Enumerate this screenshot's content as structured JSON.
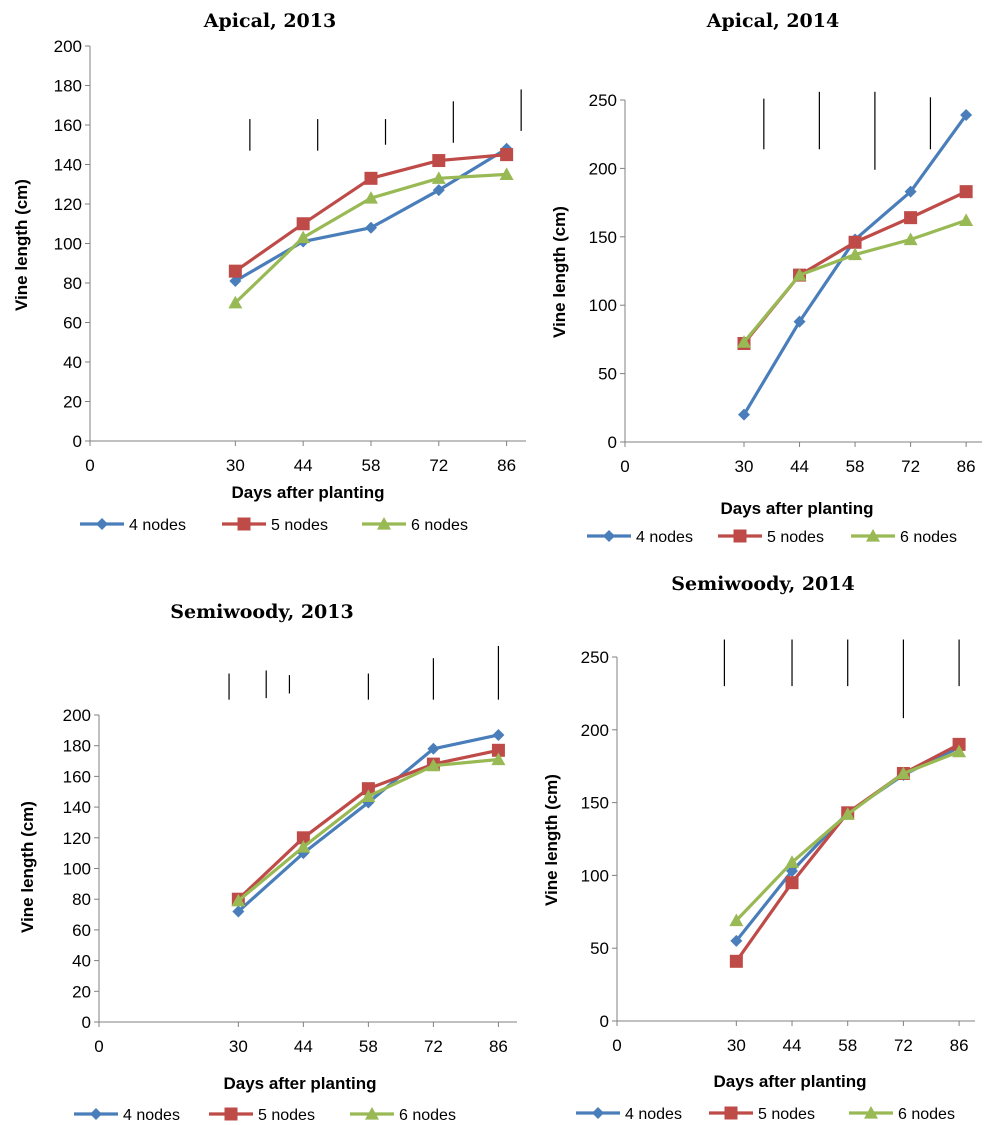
{
  "colors": {
    "4 nodes": "#4a7ebb",
    "5 nodes": "#be4b48",
    "6 nodes": "#98b954"
  },
  "chart_data": [
    {
      "type": "line",
      "title": "Apical, 2013",
      "xlabel": "Days after planting",
      "ylabel": "Vine length (cm)",
      "xticks": [
        0,
        30,
        44,
        58,
        72,
        86
      ],
      "yticks": [
        0,
        20,
        40,
        60,
        80,
        100,
        120,
        140,
        160,
        180,
        200
      ],
      "ylim": [
        0,
        200
      ],
      "x": [
        30,
        44,
        58,
        72,
        86
      ],
      "series": [
        {
          "name": "4 nodes",
          "marker": "diamond",
          "values": [
            81,
            101,
            108,
            127,
            148
          ]
        },
        {
          "name": "5 nodes",
          "marker": "square",
          "values": [
            86,
            110,
            133,
            142,
            145
          ]
        },
        {
          "name": "6 nodes",
          "marker": "triangle",
          "values": [
            70,
            103,
            123,
            133,
            135
          ]
        }
      ],
      "legend": "bottom",
      "error_bars": [
        {
          "x": 33,
          "top": 163,
          "bottom": 147
        },
        {
          "x": 47,
          "top": 163,
          "bottom": 147
        },
        {
          "x": 61,
          "top": 163,
          "bottom": 150
        },
        {
          "x": 75,
          "top": 172,
          "bottom": 151
        },
        {
          "x": 89,
          "top": 178,
          "bottom": 157
        }
      ]
    },
    {
      "type": "line",
      "title": "Apical, 2014",
      "xlabel": "Days after planting",
      "ylabel": "Vine length (cm)",
      "xticks": [
        0,
        30,
        44,
        58,
        72,
        86
      ],
      "yticks": [
        0,
        50,
        100,
        150,
        200,
        250
      ],
      "ylim": [
        0,
        250
      ],
      "x": [
        30,
        44,
        58,
        72,
        86
      ],
      "series": [
        {
          "name": "4 nodes",
          "marker": "diamond",
          "values": [
            20,
            88,
            148,
            183,
            239
          ]
        },
        {
          "name": "5 nodes",
          "marker": "square",
          "values": [
            72,
            122,
            146,
            164,
            183
          ]
        },
        {
          "name": "6 nodes",
          "marker": "triangle",
          "values": [
            73,
            122,
            137,
            148,
            162
          ]
        }
      ],
      "legend": "bottom",
      "error_bars": [
        {
          "x": 35,
          "top": 251,
          "bottom": 214
        },
        {
          "x": 49,
          "top": 256,
          "bottom": 214
        },
        {
          "x": 63,
          "top": 256,
          "bottom": 199
        },
        {
          "x": 77,
          "top": 252,
          "bottom": 214
        }
      ]
    },
    {
      "type": "line",
      "title": "Semiwoody, 2013",
      "xlabel": "Days after planting",
      "ylabel": "Vine length (cm)",
      "xticks": [
        0,
        30,
        44,
        58,
        72,
        86
      ],
      "yticks": [
        0,
        20,
        40,
        60,
        80,
        100,
        120,
        140,
        160,
        180,
        200
      ],
      "ylim": [
        0,
        200
      ],
      "x": [
        30,
        44,
        58,
        72,
        86
      ],
      "series": [
        {
          "name": "4 nodes",
          "marker": "diamond",
          "values": [
            72,
            110,
            143,
            178,
            187
          ]
        },
        {
          "name": "5 nodes",
          "marker": "square",
          "values": [
            80,
            120,
            152,
            168,
            177
          ]
        },
        {
          "name": "6 nodes",
          "marker": "triangle",
          "values": [
            79,
            114,
            147,
            167,
            171
          ]
        }
      ],
      "legend": "bottom",
      "error_bars": [
        {
          "x": 28,
          "top": 227,
          "bottom": 210
        },
        {
          "x": 36,
          "top": 229,
          "bottom": 211
        },
        {
          "x": 41,
          "top": 226,
          "bottom": 214
        },
        {
          "x": 58,
          "top": 227,
          "bottom": 210
        },
        {
          "x": 72,
          "top": 237,
          "bottom": 210
        },
        {
          "x": 86,
          "top": 245,
          "bottom": 210
        }
      ]
    },
    {
      "type": "line",
      "title": "Semiwoody, 2014",
      "xlabel": "Days after planting",
      "ylabel": "Vine length (cm)",
      "xticks": [
        0,
        30,
        44,
        58,
        72,
        86
      ],
      "yticks": [
        0,
        50,
        100,
        150,
        200,
        250
      ],
      "ylim": [
        0,
        250
      ],
      "x": [
        30,
        44,
        58,
        72,
        86
      ],
      "series": [
        {
          "name": "4 nodes",
          "marker": "diamond",
          "values": [
            55,
            103,
            143,
            169,
            188
          ]
        },
        {
          "name": "5 nodes",
          "marker": "square",
          "values": [
            41,
            95,
            143,
            170,
            190
          ]
        },
        {
          "name": "6 nodes",
          "marker": "triangle",
          "values": [
            69,
            109,
            142,
            170,
            185
          ]
        }
      ],
      "legend": "bottom",
      "error_bars": [
        {
          "x": 27,
          "top": 262,
          "bottom": 230
        },
        {
          "x": 44,
          "top": 262,
          "bottom": 230
        },
        {
          "x": 58,
          "top": 262,
          "bottom": 230
        },
        {
          "x": 72,
          "top": 262,
          "bottom": 208
        },
        {
          "x": 86,
          "top": 262,
          "bottom": 230
        }
      ]
    }
  ]
}
